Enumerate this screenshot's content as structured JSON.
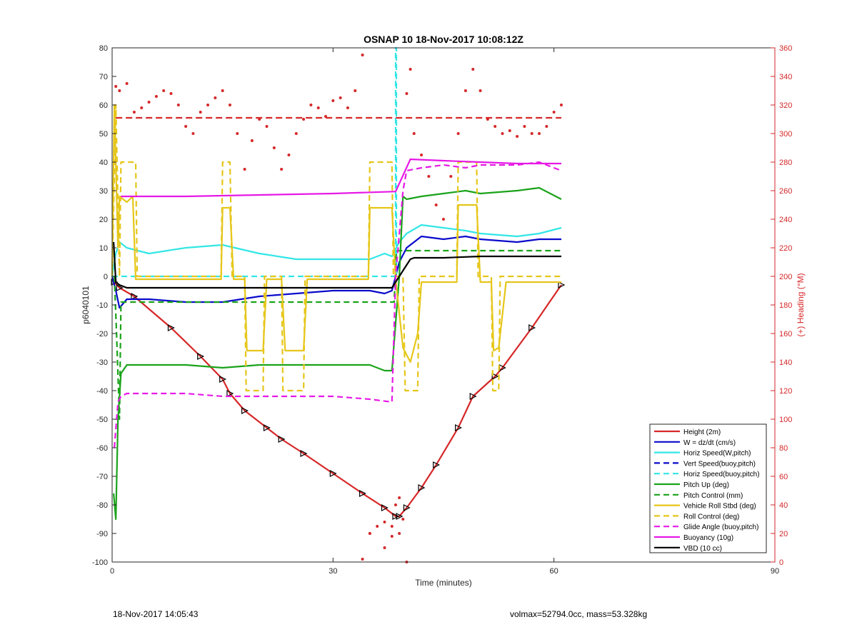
{
  "chart_data": {
    "type": "line",
    "title": "OSNAP 10 18-Nov-2017 10:08:12Z",
    "xlabel": "Time (minutes)",
    "ylabel": "p6040101",
    "y2label": "(+) Heading (°M)",
    "xlim": [
      0,
      90
    ],
    "ylim": [
      -100,
      80
    ],
    "y2lim": [
      0,
      360
    ],
    "xticks": [
      0,
      30,
      60,
      90
    ],
    "yticks": [
      -100,
      -90,
      -80,
      -70,
      -60,
      -50,
      -40,
      -30,
      -20,
      -10,
      0,
      10,
      20,
      30,
      40,
      50,
      60,
      70,
      80
    ],
    "y2ticks": [
      0,
      20,
      40,
      60,
      80,
      100,
      120,
      140,
      160,
      180,
      200,
      220,
      240,
      260,
      280,
      300,
      320,
      340,
      360
    ],
    "grid": false,
    "legend_position": "bottom-right",
    "colors": {
      "red": "#d62728",
      "blue": "#0a0acc",
      "cyan": "#33e6e6",
      "green": "#1aa31a",
      "yellow": "#e6c619",
      "magenta": "#e619e6",
      "black": "#000000",
      "heading_axis": "#d62728"
    },
    "series": [
      {
        "name": "Height (2m)",
        "color": "#d62728",
        "style": "solid",
        "markers": "triangle",
        "x": [
          0.3,
          1,
          3,
          8,
          12,
          15,
          16,
          18,
          21,
          23,
          26,
          30,
          34,
          37,
          38.5,
          39,
          40,
          42,
          44,
          47,
          49,
          52,
          53,
          57,
          61
        ],
        "y": [
          -2,
          -4,
          -7,
          -18,
          -28,
          -36,
          -41,
          -47,
          -53,
          -57,
          -62,
          -69,
          -76,
          -81,
          -84,
          -84,
          -81,
          -74,
          -66,
          -53,
          -42,
          -35,
          -32,
          -18,
          -3
        ]
      },
      {
        "name": "W = dz/dt (cm/s)",
        "color": "#0a0acc",
        "style": "solid",
        "x": [
          0,
          0.5,
          1,
          2,
          5,
          10,
          15,
          20,
          25,
          30,
          35,
          37,
          38,
          39,
          40,
          42,
          45,
          48,
          50,
          55,
          58,
          61
        ],
        "y": [
          0,
          -5,
          -11,
          -8,
          -8,
          -9,
          -9,
          -7,
          -6,
          -5,
          -5,
          -6,
          -5,
          5,
          10,
          14,
          13,
          14,
          13,
          12,
          13,
          13
        ]
      },
      {
        "name": "Horiz Speed(W,pitch)",
        "color": "#33e6e6",
        "style": "solid",
        "x": [
          0,
          0.5,
          1,
          2,
          5,
          10,
          15,
          20,
          25,
          30,
          35,
          37,
          38,
          39,
          40,
          42,
          45,
          48,
          50,
          55,
          58,
          61
        ],
        "y": [
          0,
          8,
          12,
          10,
          8,
          10,
          11,
          8,
          6,
          6,
          6,
          8,
          7,
          12,
          15,
          18,
          17,
          16,
          15,
          14,
          15,
          17
        ]
      },
      {
        "name": "Vert Speed(buoy,pitch)",
        "color": "#0a0acc",
        "style": "dashed",
        "x": [],
        "y": []
      },
      {
        "name": "Horiz Speed(buoy,pitch)",
        "color": "#33e6e6",
        "style": "dashed",
        "x": [
          0,
          38,
          38.5,
          38.5,
          38.6,
          38.6,
          39
        ],
        "y": [
          0,
          0,
          0,
          80,
          80,
          0,
          0
        ]
      },
      {
        "name": "Pitch Up (deg)",
        "color": "#1aa31a",
        "style": "solid",
        "x": [
          0.2,
          0.5,
          0.8,
          1.2,
          2,
          5,
          10,
          15,
          20,
          25,
          30,
          35,
          37,
          38,
          39,
          39.5,
          40,
          42,
          45,
          48,
          50,
          55,
          58,
          61
        ],
        "y": [
          -76,
          -85,
          -50,
          -34,
          -31,
          -31,
          -31,
          -32,
          -31,
          -31,
          -31,
          -31,
          -33,
          -33,
          0,
          28,
          27,
          28,
          29,
          30,
          29,
          30,
          31,
          27
        ]
      },
      {
        "name": "Pitch Control (mm)",
        "color": "#1aa31a",
        "style": "dashed",
        "x": [
          0.3,
          0.6,
          1,
          1.2,
          38,
          38.3,
          38.6,
          61
        ],
        "y": [
          0,
          -20,
          -50,
          -9,
          -9,
          -9,
          9,
          9
        ]
      },
      {
        "name": "Vehicle Roll Stbd (deg)",
        "color": "#e6c619",
        "style": "solid",
        "x": [
          0,
          0.3,
          0.8,
          1,
          2,
          2.8,
          3.2,
          14.8,
          15,
          16,
          16.5,
          18,
          18.3,
          20.5,
          21,
          23,
          23.5,
          26,
          26.5,
          34.8,
          35,
          38,
          38.5,
          39.5,
          40.5,
          41.5,
          42,
          46.8,
          47,
          49.5,
          50,
          51.5,
          51.8,
          52.5,
          53.5,
          61
        ],
        "y": [
          0,
          60,
          10,
          28,
          26,
          28,
          -1,
          -1,
          24,
          24,
          -1,
          -1,
          -26,
          -26,
          -1,
          -1,
          -26,
          -26,
          -1,
          -1,
          24,
          24,
          -1,
          -25,
          -30,
          -20,
          -2,
          -2,
          25,
          25,
          -2,
          -2,
          -26,
          -25,
          -2,
          -2
        ]
      },
      {
        "name": "Roll Control (deg)",
        "color": "#e6c619",
        "style": "dashed",
        "x": [
          0,
          0.5,
          1,
          1.2,
          3.2,
          3.4,
          14.8,
          15,
          16,
          16.3,
          18,
          18.2,
          20.5,
          20.7,
          23,
          23.2,
          26,
          26.2,
          34.8,
          35,
          38,
          38.2,
          39.5,
          39.8,
          41.5,
          41.7,
          46.8,
          47,
          49.5,
          49.7,
          51.5,
          51.7,
          52.5,
          52.7,
          61
        ],
        "y": [
          0,
          60,
          0,
          40,
          40,
          0,
          0,
          40,
          40,
          0,
          0,
          -40,
          -40,
          0,
          0,
          -40,
          -40,
          0,
          0,
          40,
          40,
          0,
          0,
          -40,
          -40,
          0,
          0,
          40,
          40,
          0,
          0,
          -40,
          -40,
          0,
          0
        ]
      },
      {
        "name": "Glide Angle (buoy,pitch)",
        "color": "#e619e6",
        "style": "dashed",
        "x": [
          0.3,
          0.8,
          1.2,
          2,
          5,
          10,
          15,
          20,
          25,
          30,
          35,
          38,
          38.5,
          39.5,
          40,
          42,
          45,
          48,
          50,
          55,
          58,
          61
        ],
        "y": [
          -60,
          -44,
          -42,
          -41,
          -41,
          -41,
          -42,
          -42,
          -42,
          -42,
          -43,
          -44,
          0,
          30,
          37,
          38,
          39,
          38,
          39,
          39,
          40,
          37
        ]
      },
      {
        "name": "Buoyancy (10g)",
        "color": "#e619e6",
        "style": "solid",
        "x": [
          1.2,
          10,
          20,
          30,
          38.5,
          40.5,
          45,
          50,
          55,
          61
        ],
        "y": [
          28,
          28,
          28.5,
          29,
          29.7,
          41,
          40.5,
          40,
          39.5,
          39.5
        ]
      },
      {
        "name": "VBD (10 cc)",
        "color": "#000000",
        "style": "solid",
        "x": [
          0.2,
          0.5,
          1,
          2,
          5,
          10,
          20,
          30,
          38,
          39,
          40,
          40.5,
          41,
          45,
          50,
          55,
          61
        ],
        "y": [
          12,
          -2,
          -3,
          -4,
          -4,
          -4,
          -4,
          -4,
          -4,
          0,
          4,
          6,
          6.5,
          6.5,
          7,
          7,
          7
        ]
      }
    ],
    "heading": {
      "color": "#d62728",
      "mean_line": 311,
      "x": [
        0.5,
        1,
        2,
        3,
        4,
        5,
        6,
        7,
        8,
        9,
        10,
        11,
        12,
        13,
        14,
        15,
        16,
        17,
        18,
        19,
        20,
        21,
        22,
        23,
        24,
        25,
        26,
        27,
        28,
        29,
        30,
        31,
        32,
        33,
        34,
        35,
        37,
        38,
        39,
        40,
        41,
        42,
        43,
        44,
        45,
        46,
        47,
        48,
        49,
        50,
        51,
        52,
        53,
        54,
        55,
        56,
        57,
        58,
        59,
        60,
        61
      ],
      "y": [
        333,
        330,
        335,
        315,
        318,
        322,
        326,
        330,
        328,
        320,
        305,
        300,
        315,
        320,
        325,
        330,
        320,
        300,
        275,
        295,
        310,
        305,
        290,
        275,
        285,
        300,
        310,
        320,
        318,
        312,
        323,
        325,
        318,
        330,
        355,
        20,
        10,
        25,
        20,
        328,
        300,
        285,
        270,
        250,
        240,
        270,
        300,
        330,
        345,
        330,
        310,
        305,
        300,
        302,
        298,
        305,
        300,
        300,
        305,
        315,
        320
      ],
      "scatter_x": [
        34,
        35,
        36,
        37,
        38,
        38.5,
        39,
        39.5,
        40,
        40.5
      ],
      "scatter_y": [
        2,
        20,
        25,
        28,
        18,
        40,
        45,
        30,
        0,
        345
      ]
    }
  },
  "footer": {
    "left": "18-Nov-2017 14:05:43",
    "right": "volmax=52794.0cc, mass=53.328kg"
  }
}
